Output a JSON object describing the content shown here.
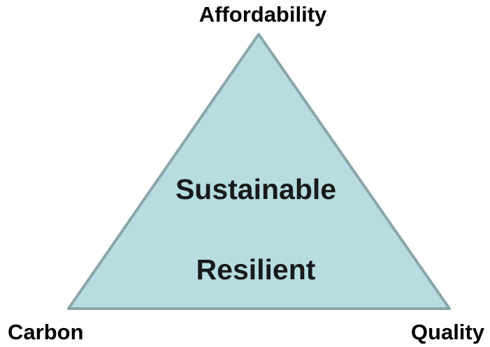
{
  "vertices": {
    "top": "Affordability",
    "left": "Carbon",
    "right": "Quality"
  },
  "center": {
    "line1": "Sustainable",
    "line2": "Resilient"
  }
}
